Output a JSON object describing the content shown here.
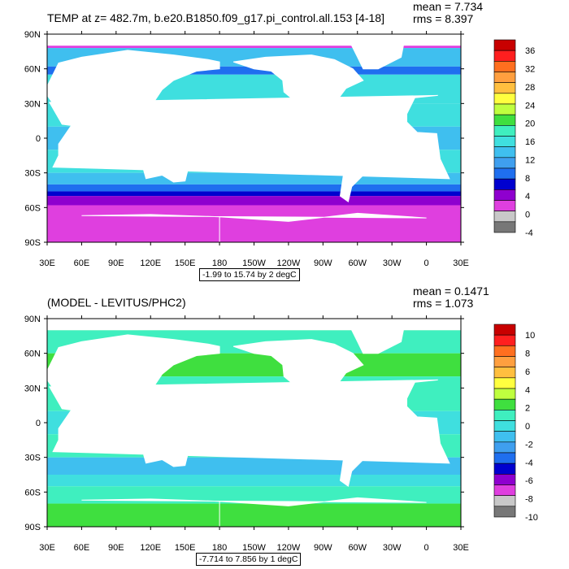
{
  "panels": [
    {
      "title_left": "TEMP at z= 482.7m, b.e20.B1850.f09_g17.pi_control.all.153 [4-18]",
      "stats": [
        "mean = 7.734",
        "rms = 8.397"
      ],
      "range_label": "-1.99 to 15.74 by 2 degC",
      "colorbar_labels": [
        "36",
        "32",
        "28",
        "24",
        "20",
        "16",
        "12",
        "8",
        "4",
        "0",
        "-4"
      ]
    },
    {
      "title_left": "(MODEL - LEVITUS/PHC2)",
      "stats": [
        "mean = 0.1471",
        "rms = 1.073"
      ],
      "range_label": "-7.714 to 7.856 by 1 degC",
      "colorbar_labels": [
        "10",
        "8",
        "6",
        "4",
        "2",
        "0",
        "-2",
        "-4",
        "-6",
        "-8",
        "-10"
      ]
    }
  ],
  "chart_data": [
    {
      "type": "heatmap",
      "title": "TEMP at z= 482.7m, b.e20.B1850.f09_g17.pi_control.all.153 [4-18]",
      "annotations": [
        "mean = 7.734",
        "rms = 8.397",
        "-1.99 to 15.74 by 2 degC"
      ],
      "x_ticks": [
        "30E",
        "60E",
        "90E",
        "120E",
        "150E",
        "180",
        "150W",
        "120W",
        "90W",
        "60W",
        "30W",
        "0",
        "30E"
      ],
      "y_ticks": [
        "90N",
        "60N",
        "30N",
        "0",
        "30S",
        "60S",
        "90S"
      ],
      "colorbar": {
        "levels": [
          36,
          32,
          28,
          24,
          20,
          16,
          12,
          8,
          4,
          0,
          -4
        ],
        "colors": [
          "#c80000",
          "#ff1f1f",
          "#ff6f1f",
          "#ff9f3f",
          "#ffbf3f",
          "#ffff3f",
          "#bfff3f",
          "#3fdf3f",
          "#3fefbf",
          "#3fdfdf",
          "#3fbfef",
          "#3f9fef",
          "#1f6fef",
          "#0000cf",
          "#8f00cf",
          "#df3fdf",
          "#c8c8c8",
          "#777777"
        ]
      },
      "field_range": [
        -1.99,
        15.74
      ],
      "contour_interval": 2
    },
    {
      "type": "heatmap",
      "title": "(MODEL - LEVITUS/PHC2)",
      "annotations": [
        "mean = 0.1471",
        "rms = 1.073",
        "-7.714 to 7.856 by 1 degC"
      ],
      "x_ticks": [
        "30E",
        "60E",
        "90E",
        "120E",
        "150E",
        "180",
        "150W",
        "120W",
        "90W",
        "60W",
        "30W",
        "0",
        "30E"
      ],
      "y_ticks": [
        "90N",
        "60N",
        "30N",
        "0",
        "30S",
        "60S",
        "90S"
      ],
      "colorbar": {
        "levels": [
          10,
          8,
          6,
          4,
          2,
          0,
          -2,
          -4,
          -6,
          -8,
          -10
        ],
        "colors": [
          "#c80000",
          "#ff1f1f",
          "#ff6f1f",
          "#ff9f3f",
          "#ffbf3f",
          "#ffff3f",
          "#bfff3f",
          "#3fdf3f",
          "#3fefbf",
          "#3fdfdf",
          "#3fbfef",
          "#3f9fef",
          "#1f6fef",
          "#0000cf",
          "#8f00cf",
          "#df3fdf",
          "#c8c8c8",
          "#777777"
        ]
      },
      "field_range": [
        -7.714,
        7.856
      ],
      "contour_interval": 1
    }
  ]
}
